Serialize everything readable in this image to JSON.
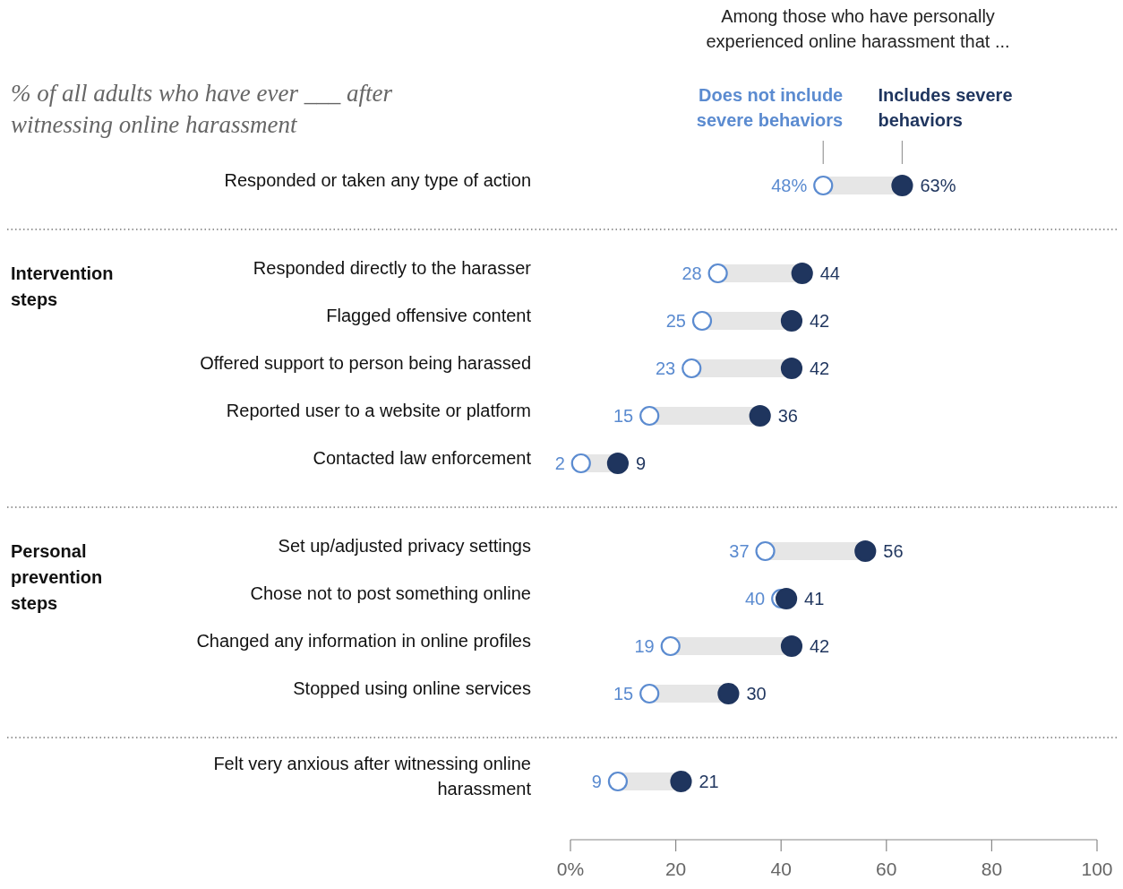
{
  "chart_data": {
    "type": "scatter",
    "orientation": "horizontal",
    "title": "% of all adults who have ever ___ after witnessing online harassment",
    "legend_title": "Among those who have personally experienced online harassment that ...",
    "categories": [
      "Responded or taken any type of action",
      null,
      "Responded directly to the harasser",
      "Flagged offensive content",
      "Offered support to person being harassed",
      "Reported user to a website or platform",
      "Contacted law enforcement",
      null,
      "Set up/adjusted privacy settings",
      "Chose not to post something online",
      "Changed any information in online profiles",
      "Stopped using online services",
      null,
      "Felt very anxious after witnessing online harassment"
    ],
    "series": [
      {
        "name": "Does not include severe behaviors",
        "color": "#5b8bd0",
        "values": [
          48,
          null,
          28,
          25,
          23,
          15,
          2,
          null,
          37,
          40,
          19,
          15,
          null,
          9
        ],
        "value_labels": [
          "48%",
          null,
          "28",
          "25",
          "23",
          "15",
          "2",
          null,
          "37",
          "40",
          "19",
          "15",
          null,
          "9"
        ]
      },
      {
        "name": "Includes severe behaviors",
        "color": "#1f355e",
        "values": [
          63,
          null,
          44,
          42,
          42,
          36,
          9,
          null,
          56,
          41,
          42,
          30,
          null,
          21
        ],
        "value_labels": [
          "63%",
          null,
          "44",
          "42",
          "42",
          "36",
          "9",
          null,
          "56",
          "41",
          "42",
          "30",
          null,
          "21"
        ]
      }
    ],
    "annotations": [
      "Intervention steps",
      "Personal prevention steps"
    ],
    "xlim": [
      0,
      100
    ],
    "xticks": [
      {
        "value": 0,
        "label": "0%"
      },
      20,
      40,
      60,
      80,
      100
    ],
    "marker": "circle",
    "grid": false,
    "legend": "top right"
  }
}
